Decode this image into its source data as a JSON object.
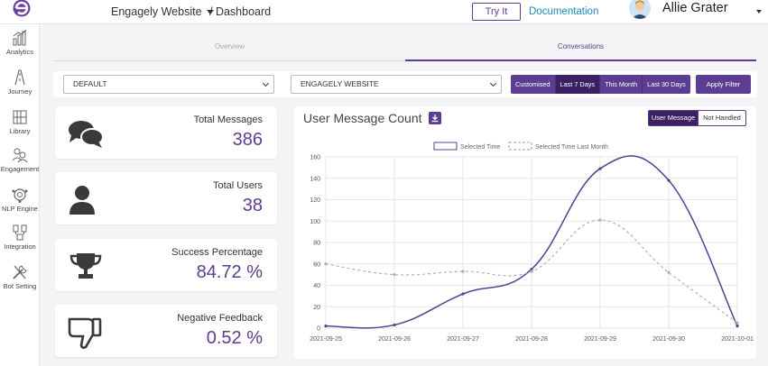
{
  "header": {
    "site_name": "Engagely Website",
    "breadcrumb": "/ Dashboard",
    "try_it": "Try It",
    "documentation": "Documentation",
    "user_name": "Allie Grater"
  },
  "sidebar": {
    "items": [
      {
        "label": "Analytics",
        "icon": "analytics-icon"
      },
      {
        "label": "Journey",
        "icon": "journey-icon"
      },
      {
        "label": "Library",
        "icon": "library-icon"
      },
      {
        "label": "Engagement",
        "icon": "engagement-icon"
      },
      {
        "label": "NLP Engine",
        "icon": "nlp-engine-icon"
      },
      {
        "label": "Integration",
        "icon": "integration-icon"
      },
      {
        "label": "Bot Setting",
        "icon": "bot-setting-icon"
      }
    ]
  },
  "tabs": {
    "overview": "Overview",
    "conversations": "Conversations"
  },
  "filters": {
    "select_one": "DEFAULT",
    "select_two": "ENGAGELY WEBSITE",
    "ranges": [
      "Customised",
      "Last 7 Days",
      "This Month",
      "Last 30 Days"
    ],
    "active_range": "Last 7 Days",
    "apply": "Apply Filter"
  },
  "stats": [
    {
      "title": "Total Messages",
      "value": "386",
      "icon": "chat-bubbles-icon"
    },
    {
      "title": "Total Users",
      "value": "38",
      "icon": "user-icon"
    },
    {
      "title": "Success Percentage",
      "value": "84.72 %",
      "icon": "trophy-icon"
    },
    {
      "title": "Negative Feedback",
      "value": "0.52 %",
      "icon": "thumbs-down-icon"
    }
  ],
  "chart_panel": {
    "title": "User Message Count",
    "toggle_on": "User Message",
    "toggle_off": "Not Handled"
  },
  "colors": {
    "accent": "#5d3d92",
    "accent_dark": "#3b2163",
    "link": "#1a8ab8"
  },
  "chart_data": {
    "type": "line",
    "x": [
      "2021-09-25",
      "2021-09-26",
      "2021-09-27",
      "2021-09-28",
      "2021-09-29",
      "2021-09-30",
      "2021-10-01"
    ],
    "ylim": [
      0,
      160
    ],
    "yticks": [
      0,
      20,
      40,
      60,
      80,
      100,
      120,
      140,
      160
    ],
    "grid": true,
    "legend_position": "top",
    "series": [
      {
        "name": "Selected Time",
        "values": [
          2,
          3,
          32,
          55,
          149,
          138,
          2
        ],
        "style": "solid",
        "color": "#5d3d92"
      },
      {
        "name": "Selected Time Last Month",
        "values": [
          60,
          50,
          53,
          53,
          101,
          52,
          5
        ],
        "style": "dashed",
        "color": "#b0b0b0"
      }
    ]
  }
}
